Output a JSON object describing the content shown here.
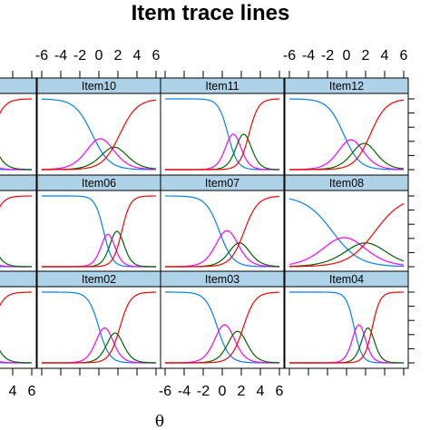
{
  "chart_data": {
    "type": "line",
    "title": "Item trace lines",
    "xlabel": "θ",
    "ylabel": "",
    "xlim": [
      -6,
      6
    ],
    "ylim": [
      0,
      1
    ],
    "x_ticks": [
      -6,
      -4,
      -2,
      0,
      2,
      4,
      6
    ],
    "x_tick_labels": [
      "-6",
      "-4",
      "-2",
      "0",
      "2",
      "4",
      "6"
    ],
    "grid": false,
    "legend": "none",
    "series_colors": [
      "#0080ff",
      "#ff00ff",
      "#006400",
      "#ff0000"
    ],
    "panels": [
      {
        "label": "",
        "params": {
          "a": 1.6,
          "b": [
            -1.5,
            0.3,
            1.8
          ]
        }
      },
      {
        "label": "Item10",
        "params": {
          "a": 1.1,
          "b": [
            -0.7,
            1.0,
            2.2
          ]
        }
      },
      {
        "label": "Item11",
        "params": {
          "a": 2.0,
          "b": [
            0.6,
            1.7,
            2.8
          ]
        }
      },
      {
        "label": "Item12",
        "params": {
          "a": 1.2,
          "b": [
            -0.3,
            1.2,
            2.5
          ]
        }
      },
      {
        "label": "",
        "params": {
          "a": 1.8,
          "b": [
            -1.0,
            0.5,
            1.7
          ]
        }
      },
      {
        "label": "Item06",
        "params": {
          "a": 2.2,
          "b": [
            0.5,
            1.4,
            2.4
          ]
        }
      },
      {
        "label": "Item07",
        "params": {
          "a": 1.4,
          "b": [
            -0.3,
            1.3,
            2.3
          ]
        }
      },
      {
        "label": "Item08",
        "params": {
          "a": 0.7,
          "b": [
            -1.5,
            1.0,
            3.0
          ]
        }
      },
      {
        "label": "",
        "params": {
          "a": 1.7,
          "b": [
            -1.5,
            0.3,
            1.8
          ]
        }
      },
      {
        "label": "Item02",
        "params": {
          "a": 1.8,
          "b": [
            0.0,
            1.2,
            2.2
          ]
        }
      },
      {
        "label": "Item03",
        "params": {
          "a": 1.6,
          "b": [
            -0.5,
            1.0,
            2.2
          ]
        }
      },
      {
        "label": "Item04",
        "params": {
          "a": 2.4,
          "b": [
            0.8,
            1.8,
            2.7
          ]
        }
      }
    ]
  }
}
